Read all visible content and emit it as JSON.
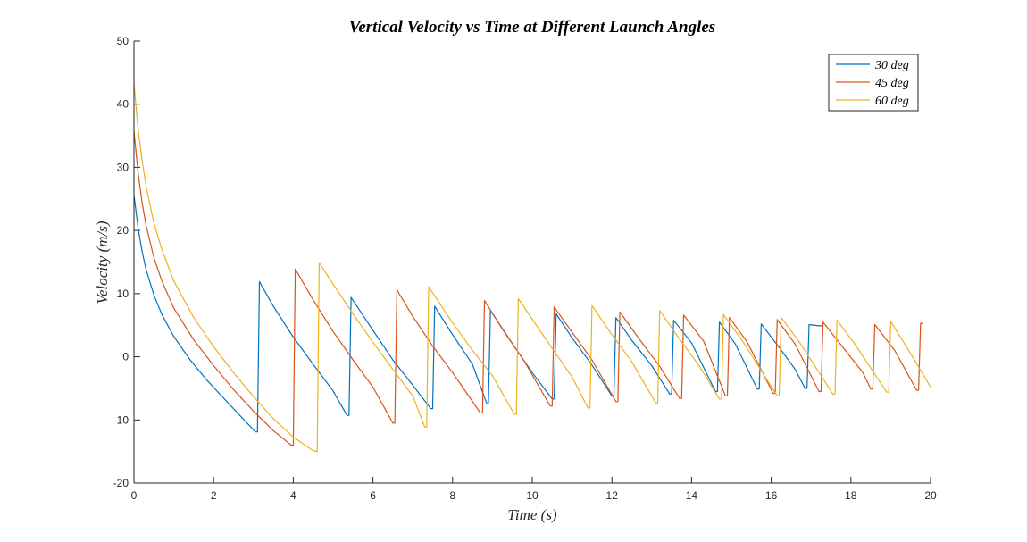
{
  "chart_data": {
    "type": "line",
    "title": "Vertical Velocity vs Time at Different Launch Angles",
    "xlabel": "Time (s)",
    "ylabel": "Velocity (m/s)",
    "xlim": [
      0,
      20
    ],
    "ylim": [
      -20,
      50
    ],
    "xticks": [
      0,
      2,
      4,
      6,
      8,
      10,
      12,
      14,
      16,
      18,
      20
    ],
    "yticks": [
      -20,
      -10,
      0,
      10,
      20,
      30,
      40,
      50
    ],
    "grid": false,
    "legend_position": "top-right",
    "series": [
      {
        "name": "30 deg",
        "color": "#0072BD",
        "points": [
          [
            0,
            25.6
          ],
          [
            0.1,
            20.5
          ],
          [
            0.2,
            16.8
          ],
          [
            0.3,
            13.9
          ],
          [
            0.5,
            9.8
          ],
          [
            0.7,
            6.7
          ],
          [
            1.0,
            3.2
          ],
          [
            1.4,
            -0.4
          ],
          [
            1.8,
            -3.5
          ],
          [
            2.2,
            -6.2
          ],
          [
            2.6,
            -8.9
          ],
          [
            3.05,
            -11.9
          ],
          [
            3.1,
            -11.9
          ],
          [
            3.15,
            11.9
          ],
          [
            3.5,
            8.0
          ],
          [
            4.0,
            3.1
          ],
          [
            4.5,
            -1.2
          ],
          [
            5.0,
            -5.4
          ],
          [
            5.35,
            -9.3
          ],
          [
            5.4,
            -9.3
          ],
          [
            5.45,
            9.4
          ],
          [
            6.0,
            4.2
          ],
          [
            6.5,
            -0.5
          ],
          [
            7.0,
            -4.5
          ],
          [
            7.45,
            -8.2
          ],
          [
            7.5,
            -8.2
          ],
          [
            7.55,
            8.0
          ],
          [
            8.0,
            3.5
          ],
          [
            8.5,
            -1.2
          ],
          [
            8.85,
            -7.3
          ],
          [
            8.9,
            -7.3
          ],
          [
            8.95,
            7.3
          ],
          [
            9.5,
            2.1
          ],
          [
            10.0,
            -2.5
          ],
          [
            10.5,
            -6.7
          ],
          [
            10.55,
            -6.7
          ],
          [
            10.6,
            6.8
          ],
          [
            11.0,
            3.0
          ],
          [
            11.5,
            -1.3
          ],
          [
            12.0,
            -6.2
          ],
          [
            12.05,
            -6.2
          ],
          [
            12.1,
            6.2
          ],
          [
            12.5,
            2.6
          ],
          [
            13.0,
            -1.4
          ],
          [
            13.45,
            -5.9
          ],
          [
            13.5,
            -5.9
          ],
          [
            13.55,
            5.8
          ],
          [
            14.0,
            2.2
          ],
          [
            14.6,
            -5.5
          ],
          [
            14.65,
            -5.5
          ],
          [
            14.7,
            5.5
          ],
          [
            15.1,
            2.0
          ],
          [
            15.65,
            -5.1
          ],
          [
            15.7,
            -5.1
          ],
          [
            15.75,
            5.2
          ],
          [
            16.2,
            1.5
          ],
          [
            16.6,
            -2.0
          ],
          [
            16.85,
            -5.0
          ],
          [
            16.9,
            -5.0
          ],
          [
            16.95,
            5.1
          ],
          [
            17.2,
            4.9
          ],
          [
            17.3,
            4.9
          ]
        ]
      },
      {
        "name": "45 deg",
        "color": "#D95319",
        "points": [
          [
            0,
            35.7
          ],
          [
            0.1,
            29.3
          ],
          [
            0.2,
            24.6
          ],
          [
            0.3,
            20.9
          ],
          [
            0.5,
            15.7
          ],
          [
            0.7,
            12.0
          ],
          [
            1.0,
            7.7
          ],
          [
            1.5,
            2.7
          ],
          [
            2.0,
            -1.4
          ],
          [
            2.5,
            -5.2
          ],
          [
            3.0,
            -8.6
          ],
          [
            3.5,
            -11.7
          ],
          [
            3.95,
            -14.0
          ],
          [
            4.0,
            -14.0
          ],
          [
            4.05,
            13.9
          ],
          [
            4.5,
            9.0
          ],
          [
            5.0,
            4.0
          ],
          [
            5.5,
            -0.5
          ],
          [
            6.0,
            -4.8
          ],
          [
            6.5,
            -10.5
          ],
          [
            6.55,
            -10.5
          ],
          [
            6.6,
            10.6
          ],
          [
            7.0,
            6.4
          ],
          [
            7.5,
            1.7
          ],
          [
            8.0,
            -2.5
          ],
          [
            8.7,
            -8.9
          ],
          [
            8.75,
            -8.9
          ],
          [
            8.8,
            8.9
          ],
          [
            9.3,
            3.9
          ],
          [
            9.8,
            -0.7
          ],
          [
            10.45,
            -7.8
          ],
          [
            10.5,
            -7.8
          ],
          [
            10.55,
            7.9
          ],
          [
            11.0,
            3.9
          ],
          [
            11.5,
            -0.5
          ],
          [
            12.1,
            -7.1
          ],
          [
            12.15,
            -7.1
          ],
          [
            12.2,
            7.1
          ],
          [
            12.7,
            2.7
          ],
          [
            13.2,
            -1.5
          ],
          [
            13.7,
            -6.6
          ],
          [
            13.75,
            -6.6
          ],
          [
            13.8,
            6.6
          ],
          [
            14.3,
            2.5
          ],
          [
            14.85,
            -6.2
          ],
          [
            14.9,
            -6.2
          ],
          [
            14.95,
            6.2
          ],
          [
            15.4,
            2.3
          ],
          [
            16.05,
            -5.8
          ],
          [
            16.1,
            -5.8
          ],
          [
            16.15,
            5.9
          ],
          [
            16.6,
            2.0
          ],
          [
            17.2,
            -5.5
          ],
          [
            17.25,
            -5.5
          ],
          [
            17.3,
            5.5
          ],
          [
            17.8,
            1.5
          ],
          [
            18.3,
            -2.5
          ],
          [
            18.5,
            -5.1
          ],
          [
            18.55,
            -5.1
          ],
          [
            18.6,
            5.1
          ],
          [
            19.1,
            1.0
          ],
          [
            19.65,
            -5.3
          ],
          [
            19.7,
            -5.3
          ],
          [
            19.75,
            5.3
          ],
          [
            19.8,
            5.3
          ]
        ]
      },
      {
        "name": "60 deg",
        "color": "#EDB120",
        "points": [
          [
            0,
            43.3
          ],
          [
            0.1,
            36.2
          ],
          [
            0.2,
            31.3
          ],
          [
            0.3,
            27.1
          ],
          [
            0.5,
            21.2
          ],
          [
            0.7,
            17.0
          ],
          [
            1.0,
            12.0
          ],
          [
            1.5,
            6.2
          ],
          [
            2.0,
            1.6
          ],
          [
            2.5,
            -2.5
          ],
          [
            3.0,
            -6.3
          ],
          [
            3.5,
            -9.8
          ],
          [
            4.0,
            -12.7
          ],
          [
            4.5,
            -14.9
          ],
          [
            4.6,
            -15.0
          ],
          [
            4.65,
            14.9
          ],
          [
            5.0,
            11.5
          ],
          [
            5.5,
            6.8
          ],
          [
            6.0,
            2.3
          ],
          [
            6.5,
            -2.0
          ],
          [
            7.0,
            -6.2
          ],
          [
            7.3,
            -11.1
          ],
          [
            7.35,
            -11.1
          ],
          [
            7.4,
            11.1
          ],
          [
            7.9,
            6.3
          ],
          [
            8.5,
            1.0
          ],
          [
            9.0,
            -3.0
          ],
          [
            9.55,
            -9.1
          ],
          [
            9.6,
            -9.1
          ],
          [
            9.65,
            9.2
          ],
          [
            10.1,
            5.0
          ],
          [
            10.6,
            0.4
          ],
          [
            11.0,
            -3.2
          ],
          [
            11.4,
            -8.1
          ],
          [
            11.45,
            -8.1
          ],
          [
            11.5,
            8.1
          ],
          [
            12.0,
            3.5
          ],
          [
            12.5,
            -0.8
          ],
          [
            13.1,
            -7.3
          ],
          [
            13.15,
            -7.3
          ],
          [
            13.2,
            7.3
          ],
          [
            13.7,
            2.8
          ],
          [
            14.2,
            -1.5
          ],
          [
            14.7,
            -6.7
          ],
          [
            14.75,
            -6.7
          ],
          [
            14.8,
            6.7
          ],
          [
            15.3,
            2.3
          ],
          [
            16.15,
            -6.2
          ],
          [
            16.2,
            -6.2
          ],
          [
            16.25,
            6.2
          ],
          [
            16.7,
            2.4
          ],
          [
            17.55,
            -5.9
          ],
          [
            17.6,
            -5.9
          ],
          [
            17.65,
            5.8
          ],
          [
            18.1,
            2.0
          ],
          [
            18.9,
            -5.6
          ],
          [
            18.95,
            -5.6
          ],
          [
            19.0,
            5.6
          ],
          [
            19.5,
            0.5
          ],
          [
            20.0,
            -4.8
          ]
        ]
      }
    ]
  }
}
